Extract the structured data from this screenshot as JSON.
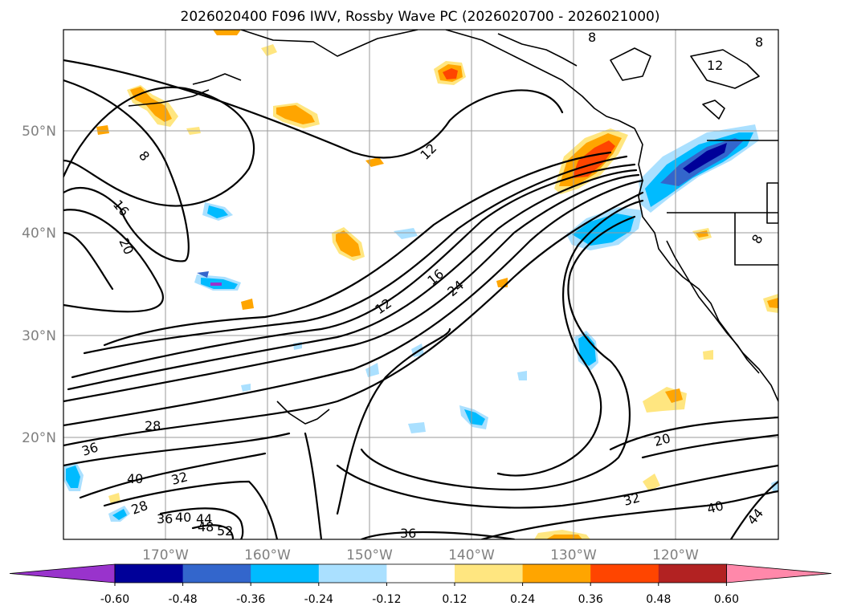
{
  "title": "2026020400 F096 IWV, Rossby Wave PC (2026020700 - 2026021000)",
  "lat_ticks": [
    "50°N",
    "40°N",
    "30°N",
    "20°N"
  ],
  "lon_ticks": [
    "170°W",
    "160°W",
    "150°W",
    "140°W",
    "130°W",
    "120°W"
  ],
  "colorbar": {
    "ticks": [
      "-0.60",
      "-0.48",
      "-0.36",
      "-0.24",
      "-0.12",
      "0.12",
      "0.24",
      "0.36",
      "0.48",
      "0.60"
    ],
    "colors": [
      "#9933cc",
      "#000099",
      "#3366cc",
      "#00bbff",
      "#aae0ff",
      "#ffffff",
      "#ffe680",
      "#ffa500",
      "#ff4500",
      "#b22222",
      "#ff88aa"
    ]
  },
  "contour_labels": [
    "8",
    "12",
    "16",
    "20",
    "24",
    "28",
    "32",
    "36",
    "40",
    "44",
    "48",
    "52"
  ],
  "map_extent": {
    "lon": [
      -180,
      -110
    ],
    "lat": [
      10,
      60
    ]
  }
}
